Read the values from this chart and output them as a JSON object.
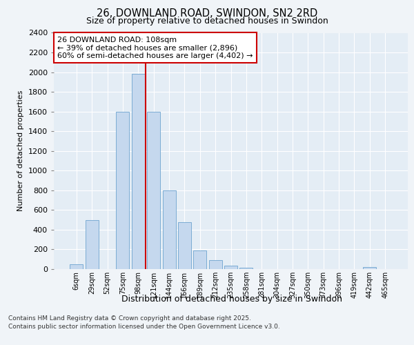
{
  "title1": "26, DOWNLAND ROAD, SWINDON, SN2 2RD",
  "title2": "Size of property relative to detached houses in Swindon",
  "xlabel": "Distribution of detached houses by size in Swindon",
  "ylabel": "Number of detached properties",
  "bar_labels": [
    "6sqm",
    "29sqm",
    "52sqm",
    "75sqm",
    "98sqm",
    "121sqm",
    "144sqm",
    "166sqm",
    "189sqm",
    "212sqm",
    "235sqm",
    "258sqm",
    "281sqm",
    "304sqm",
    "327sqm",
    "350sqm",
    "373sqm",
    "396sqm",
    "419sqm",
    "442sqm",
    "465sqm"
  ],
  "bar_values": [
    50,
    500,
    0,
    1600,
    1980,
    1600,
    800,
    480,
    190,
    90,
    35,
    15,
    0,
    0,
    0,
    0,
    0,
    0,
    0,
    20,
    0
  ],
  "bar_color": "#c5d8ee",
  "bar_edge_color": "#7bacd4",
  "vline_index": 4.5,
  "property_line_label": "26 DOWNLAND ROAD: 108sqm",
  "annotation_line1": "← 39% of detached houses are smaller (2,896)",
  "annotation_line2": "60% of semi-detached houses are larger (4,402) →",
  "annotation_box_color": "#ffffff",
  "annotation_box_edge": "#cc0000",
  "vline_color": "#cc0000",
  "ylim": [
    0,
    2400
  ],
  "yticks": [
    0,
    200,
    400,
    600,
    800,
    1000,
    1200,
    1400,
    1600,
    1800,
    2000,
    2200,
    2400
  ],
  "bg_color": "#f0f4f8",
  "plot_bg_color": "#e4edf5",
  "footer1": "Contains HM Land Registry data © Crown copyright and database right 2025.",
  "footer2": "Contains public sector information licensed under the Open Government Licence v3.0."
}
